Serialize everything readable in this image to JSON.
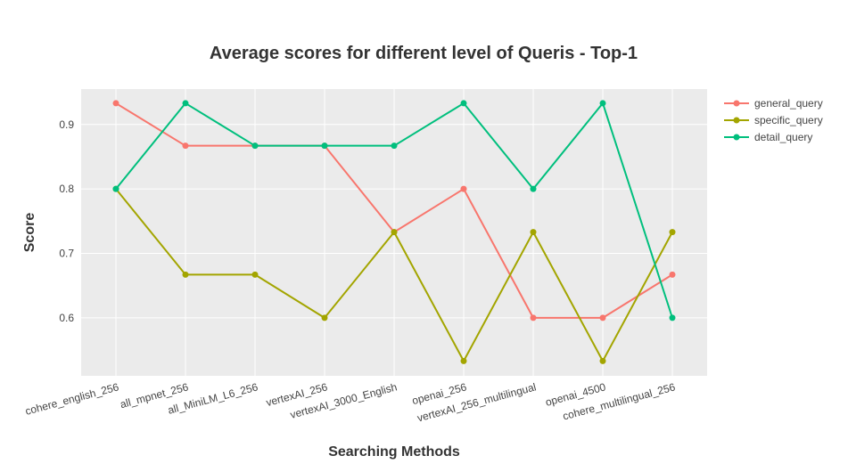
{
  "chart_data": {
    "type": "line",
    "title": "Average scores for different level of Queris - Top-1",
    "xlabel": "Searching Methods",
    "ylabel": "Score",
    "categories": [
      "cohere_english_256",
      "all_mpnet_256",
      "all_MiniLM_L6_256",
      "vertexAI_256",
      "vertexAI_3000_English",
      "openai_256",
      "vertexAI_256_multilingual",
      "openai_4500",
      "cohere_multilingual_256"
    ],
    "series": [
      {
        "name": "general_query",
        "color": "#F8766D",
        "values": [
          0.933,
          0.867,
          0.867,
          0.867,
          0.733,
          0.8,
          0.6,
          0.6,
          0.667
        ]
      },
      {
        "name": "specific_query",
        "color": "#A3A500",
        "values": [
          0.8,
          0.667,
          0.667,
          0.6,
          0.733,
          0.533,
          0.733,
          0.533,
          0.733
        ]
      },
      {
        "name": "detail_query",
        "color": "#00BF7D",
        "values": [
          0.8,
          0.933,
          0.867,
          0.867,
          0.867,
          0.933,
          0.8,
          0.933,
          0.6
        ]
      }
    ],
    "yticks": [
      0.6,
      0.7,
      0.8,
      0.9
    ],
    "ylim": [
      0.51,
      0.955
    ],
    "grid": true,
    "legend_position": "top-right",
    "plot_background": "#EBEBEB"
  }
}
